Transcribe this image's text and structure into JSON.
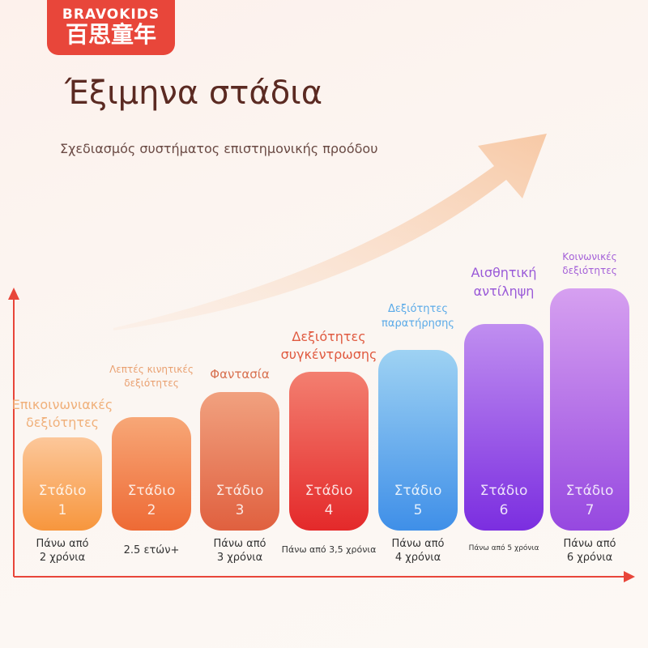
{
  "logo": {
    "brand": "BRAVOKIDS",
    "name": "百思童年"
  },
  "title": "Έξιμηνα στάδια",
  "subtitle": "Σχεδιασμός συστήματος επιστημονικής προόδου",
  "stages": [
    {
      "label": [
        "Επικοινωνιακές",
        "δεξιότητες"
      ],
      "stage": "Στάδιο",
      "number": "1",
      "age": [
        "Πάνω από",
        "2 χρόνια"
      ]
    },
    {
      "label": [
        "Λεπτές κινητικές",
        "δεξιότητες"
      ],
      "stage": "Στάδιο",
      "number": "2",
      "age": [
        "2.5 ετών+"
      ]
    },
    {
      "label": [
        "Φαντασία"
      ],
      "stage": "Στάδιο",
      "number": "3",
      "age": [
        "Πάνω από",
        "3 χρόνια"
      ]
    },
    {
      "label": [
        "Δεξιότητες",
        "συγκέντρωσης"
      ],
      "stage": "Στάδιο",
      "number": "4",
      "age": [
        "Πάνω από 3,5 χρόνια"
      ]
    },
    {
      "label": [
        "Δεξιότητες",
        "παρατήρησης"
      ],
      "stage": "Στάδιο",
      "number": "5",
      "age": [
        "Πάνω από",
        "4 χρόνια"
      ]
    },
    {
      "label": [
        "Αισθητική",
        "αντίληψη"
      ],
      "stage": "Στάδιο",
      "number": "6",
      "age": [
        "Πάνω από 5 χρόνια"
      ]
    },
    {
      "label": [
        "Κοινωνικές",
        "δεξιότητες"
      ],
      "stage": "Στάδιο",
      "number": "7",
      "age": [
        "Πάνω από",
        "6 χρόνια"
      ]
    }
  ]
}
